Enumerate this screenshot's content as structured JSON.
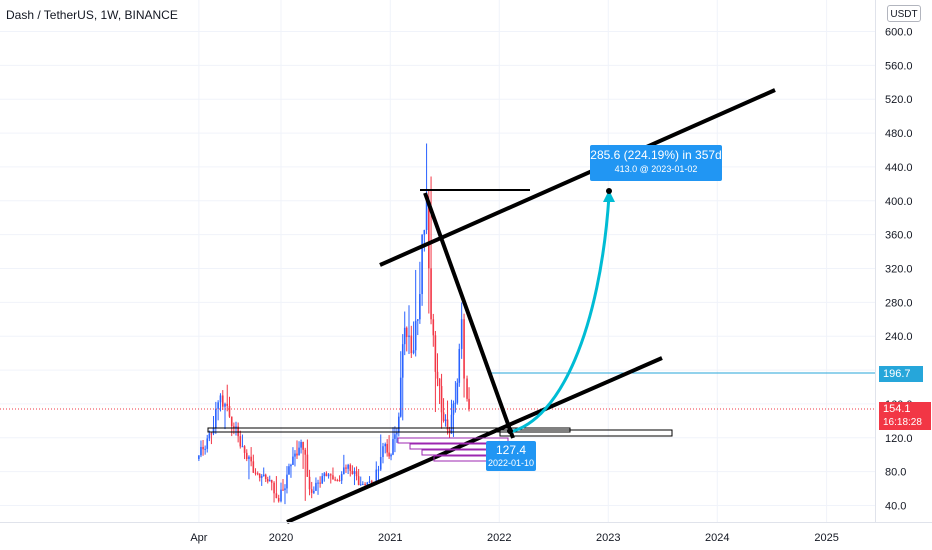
{
  "header": {
    "title": "Dash / TetherUS, 1W, BINANCE",
    "currency": "USDT"
  },
  "colors": {
    "up": "#2962ff",
    "down": "#f23645",
    "arrow": "#00bcd4",
    "callout": "#2196f3",
    "grid": "#f0f3fa"
  },
  "chart_data": {
    "type": "candlestick",
    "yaxis": {
      "ticks": [
        600.0,
        560.0,
        520.0,
        480.0,
        440.0,
        400.0,
        360.0,
        320.0,
        280.0,
        240.0,
        200.0,
        160.0,
        120.0,
        80.0,
        40.0
      ]
    },
    "xaxis": {
      "ticks": [
        "Apr",
        "2020",
        "2021",
        "2022",
        "2023",
        "2024",
        "2025"
      ]
    },
    "price_labels": {
      "horizontal_line": "196.7",
      "last_price": "154.1",
      "countdown": "16:18:28"
    },
    "measure": {
      "line1": "285.6 (224.19%) in 357d",
      "line2": "413.0 @ 2023-01-02"
    },
    "point_label": {
      "price": "127.4",
      "date": "2022-01-10"
    },
    "series": [
      {
        "date": "2019-04-01",
        "open": 95,
        "high": 135,
        "low": 88,
        "close": 125
      },
      {
        "date": "2019-05-20",
        "open": 125,
        "high": 180,
        "low": 115,
        "close": 170
      },
      {
        "date": "2019-06-20",
        "open": 170,
        "high": 190,
        "low": 130,
        "close": 145
      },
      {
        "date": "2019-07-20",
        "open": 145,
        "high": 150,
        "low": 100,
        "close": 110
      },
      {
        "date": "2019-09-01",
        "open": 110,
        "high": 115,
        "low": 70,
        "close": 78
      },
      {
        "date": "2019-10-15",
        "open": 78,
        "high": 85,
        "low": 60,
        "close": 70
      },
      {
        "date": "2019-12-01",
        "open": 70,
        "high": 75,
        "low": 40,
        "close": 45
      },
      {
        "date": "2020-01-01",
        "open": 45,
        "high": 95,
        "low": 40,
        "close": 88
      },
      {
        "date": "2020-02-10",
        "open": 88,
        "high": 130,
        "low": 85,
        "close": 115
      },
      {
        "date": "2020-03-15",
        "open": 115,
        "high": 118,
        "low": 35,
        "close": 55
      },
      {
        "date": "2020-04-20",
        "open": 55,
        "high": 85,
        "low": 50,
        "close": 78
      },
      {
        "date": "2020-06-01",
        "open": 78,
        "high": 85,
        "low": 65,
        "close": 70
      },
      {
        "date": "2020-07-15",
        "open": 70,
        "high": 100,
        "low": 65,
        "close": 88
      },
      {
        "date": "2020-08-20",
        "open": 88,
        "high": 100,
        "low": 60,
        "close": 65
      },
      {
        "date": "2020-10-01",
        "open": 65,
        "high": 75,
        "low": 60,
        "close": 68
      },
      {
        "date": "2020-11-15",
        "open": 68,
        "high": 125,
        "low": 65,
        "close": 110
      },
      {
        "date": "2020-12-15",
        "open": 110,
        "high": 130,
        "low": 85,
        "close": 100
      },
      {
        "date": "2021-01-10",
        "open": 100,
        "high": 160,
        "low": 95,
        "close": 145
      },
      {
        "date": "2021-02-05",
        "open": 145,
        "high": 310,
        "low": 140,
        "close": 250
      },
      {
        "date": "2021-02-25",
        "open": 250,
        "high": 280,
        "low": 190,
        "close": 220
      },
      {
        "date": "2021-03-20",
        "open": 220,
        "high": 330,
        "low": 210,
        "close": 260
      },
      {
        "date": "2021-04-10",
        "open": 260,
        "high": 420,
        "low": 250,
        "close": 360
      },
      {
        "date": "2021-04-25",
        "open": 360,
        "high": 480,
        "low": 340,
        "close": 400
      },
      {
        "date": "2021-05-10",
        "open": 400,
        "high": 440,
        "low": 220,
        "close": 260
      },
      {
        "date": "2021-05-25",
        "open": 260,
        "high": 280,
        "low": 150,
        "close": 190
      },
      {
        "date": "2021-06-15",
        "open": 190,
        "high": 200,
        "low": 120,
        "close": 140
      },
      {
        "date": "2021-07-05",
        "open": 140,
        "high": 165,
        "low": 110,
        "close": 125
      },
      {
        "date": "2021-07-25",
        "open": 125,
        "high": 200,
        "low": 120,
        "close": 185
      },
      {
        "date": "2021-08-20",
        "open": 185,
        "high": 290,
        "low": 180,
        "close": 260
      },
      {
        "date": "2021-09-05",
        "open": 260,
        "high": 270,
        "low": 160,
        "close": 190
      },
      {
        "date": "2021-09-15",
        "open": 190,
        "high": 200,
        "low": 145,
        "close": 154
      }
    ]
  }
}
